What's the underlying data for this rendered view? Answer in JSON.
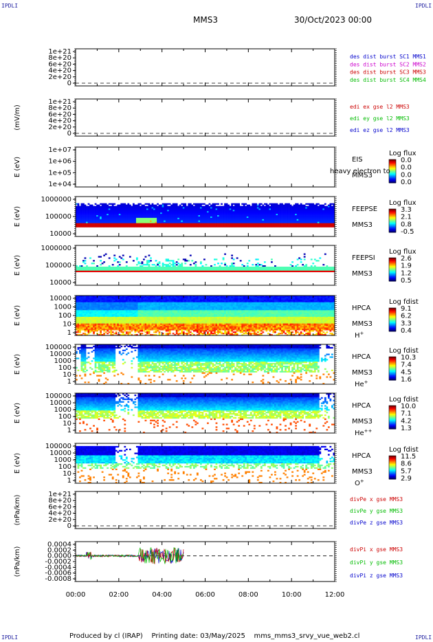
{
  "header": {
    "corner_tl": "IPDLI",
    "corner_tr": "IPDLI",
    "corner_bl": "IPDLI",
    "corner_br": "IPDLI",
    "spacecraft": "MMS3",
    "date": "30/Oct/2023 00:00"
  },
  "footer": {
    "text": "Produced by cl (IRAP)    Printing date: 03/May/2025    mms_mms3_srvy_vue_web2.cl"
  },
  "x_axis": {
    "ticks": [
      "00:00",
      "02:00",
      "04:00",
      "06:00",
      "08:00",
      "10:00",
      "12:00"
    ],
    "range_hours": [
      0,
      12
    ]
  },
  "colors": {
    "blue": "#0000cc",
    "magenta": "#cc00cc",
    "red": "#cc0000",
    "green": "#00bb00"
  },
  "chart_data": [
    {
      "type": "line",
      "id": "des-dist",
      "ylabel": "",
      "ticks": [
        "1e+21",
        "8e+20",
        "6e+20",
        "4e+20",
        "2e+20",
        "0"
      ],
      "legend": [
        {
          "text": "des dist burst SC1 MMS1",
          "color": "#0000cc"
        },
        {
          "text": "des dist burst SC2 MMS2",
          "color": "#cc00cc"
        },
        {
          "text": "des dist burst SC3 MMS3",
          "color": "#cc0000"
        },
        {
          "text": "des dist burst SC4 MMS4",
          "color": "#00bb00"
        }
      ]
    },
    {
      "type": "line",
      "id": "edi-e",
      "ylabel": "(mV/m)",
      "ticks": [
        "1e+21",
        "8e+20",
        "6e+20",
        "4e+20",
        "2e+20",
        "0"
      ],
      "legend": [
        {
          "text": "edi ex gse l2 MMS3",
          "color": "#cc0000"
        },
        {
          "text": "edi ey gse l2 MMS3",
          "color": "#00bb00"
        },
        {
          "text": "edi ez gse l2 MMS3",
          "color": "#0000cc"
        }
      ]
    },
    {
      "type": "heatmap",
      "id": "eis",
      "ylabel": "E (eV)",
      "ticks": [
        "1e+07",
        "1e+06",
        "1e+05",
        "1e+04"
      ],
      "name": "EIS",
      "sc": "MMS3",
      "extra": "heavy electron to",
      "cbar_title": "Log flux",
      "cbar_ticks": [
        "0.0",
        "0.0",
        "0.0",
        "0.0"
      ],
      "empty": true
    },
    {
      "type": "heatmap",
      "id": "feepse",
      "ylabel": "E (eV)",
      "ticks": [
        "1000000",
        "100000",
        "10000"
      ],
      "name": "FEEPSE",
      "sc": "MMS3",
      "cbar_title": "Log flux",
      "cbar_ticks": [
        "3.3",
        "2.1",
        "0.8",
        "-0.5"
      ]
    },
    {
      "type": "heatmap",
      "id": "feepsi",
      "ylabel": "E (eV)",
      "ticks": [
        "1000000",
        "100000",
        "10000"
      ],
      "name": "FEEPSI",
      "sc": "MMS3",
      "cbar_title": "Log flux",
      "cbar_ticks": [
        "2.6",
        "1.9",
        "1.2",
        "0.5"
      ]
    },
    {
      "type": "heatmap",
      "id": "hpca-h",
      "ylabel": "E (eV)",
      "ticks": [
        "10000",
        "1000",
        "100",
        "10",
        "1"
      ],
      "name": "HPCA",
      "sc": "MMS3",
      "species": "H",
      "charge": "+",
      "cbar_title": "Log fdist",
      "cbar_ticks": [
        "9.1",
        "6.2",
        "3.3",
        "0.4"
      ]
    },
    {
      "type": "heatmap",
      "id": "hpca-he",
      "ylabel": "E (eV)",
      "ticks": [
        "100000",
        "10000",
        "1000",
        "100",
        "10",
        "1"
      ],
      "name": "HPCA",
      "sc": "MMS3",
      "species": "He",
      "charge": "+",
      "cbar_title": "Log fdist",
      "cbar_ticks": [
        "10.3",
        "7.4",
        "4.5",
        "1.6"
      ]
    },
    {
      "type": "heatmap",
      "id": "hpca-he2",
      "ylabel": "E (eV)",
      "ticks": [
        "100000",
        "10000",
        "1000",
        "100",
        "10",
        "1"
      ],
      "name": "HPCA",
      "sc": "MMS3",
      "species": "He",
      "charge": "++",
      "cbar_title": "Log fdist",
      "cbar_ticks": [
        "10.0",
        "7.1",
        "4.2",
        "1.3"
      ]
    },
    {
      "type": "heatmap",
      "id": "hpca-o",
      "ylabel": "E (eV)",
      "ticks": [
        "100000",
        "10000",
        "1000",
        "100",
        "10",
        "1"
      ],
      "name": "HPCA",
      "sc": "MMS3",
      "species": "O",
      "charge": "+",
      "cbar_title": "Log fdist",
      "cbar_ticks": [
        "11.5",
        "8.6",
        "5.7",
        "2.9"
      ]
    },
    {
      "type": "line",
      "id": "divpe",
      "ylabel": "(nPa/km)",
      "ticks": [
        "1e+21",
        "8e+20",
        "6e+20",
        "4e+20",
        "2e+20",
        "0"
      ],
      "legend": [
        {
          "text": "divPe x gse MMS3",
          "color": "#cc0000"
        },
        {
          "text": "divPe y gse MMS3",
          "color": "#00bb00"
        },
        {
          "text": "divPe z gse MMS3",
          "color": "#0000cc"
        }
      ]
    },
    {
      "type": "line",
      "id": "divpi",
      "ylabel": "(nPa/km)",
      "ticks": [
        "0.0004",
        "0.0002",
        "0.0000",
        "-0.0002",
        "-0.0004",
        "-0.0006",
        "-0.0008"
      ],
      "legend": [
        {
          "text": "divPi x gse MMS3",
          "color": "#cc0000"
        },
        {
          "text": "divPi y gse MMS3",
          "color": "#00bb00"
        },
        {
          "text": "divPi z gse MMS3",
          "color": "#0000cc"
        }
      ],
      "data_end_hour": 5.0
    }
  ]
}
